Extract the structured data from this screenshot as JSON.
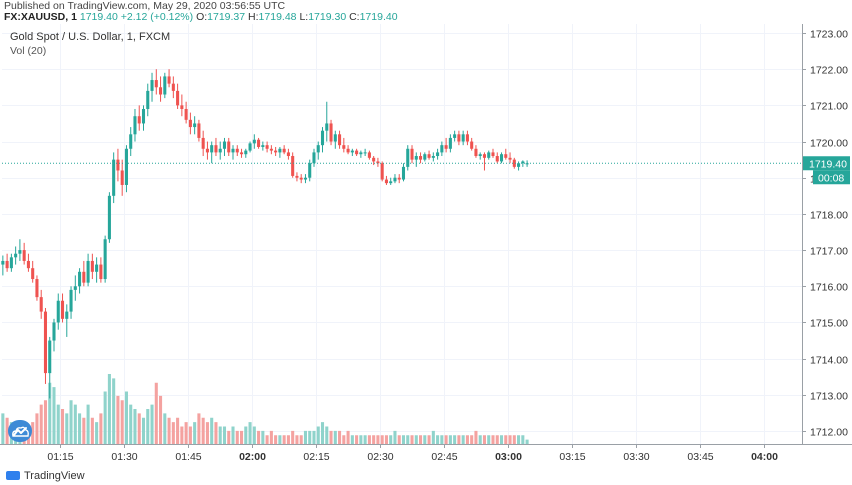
{
  "header": {
    "published": "Published on TradingView.com, May 29, 2020 03:56:55 UTC",
    "symbol": "FX:XAUUSD, 1",
    "last": "1719.40",
    "change": "+2.12 (+0.12%)",
    "o_label": "O:",
    "o": "1719.37",
    "h_label": "H:",
    "h": "1719.48",
    "l_label": "L:",
    "l": "1719.30",
    "c_label": "C:",
    "c": "1719.40"
  },
  "legend": {
    "title": "Gold Spot / U.S. Dollar, 1, FXCM",
    "volume": "Vol (20)"
  },
  "footer": {
    "brand": "TradingView"
  },
  "price_tag": {
    "price": "1719.40",
    "countdown": "00:08"
  },
  "colors": {
    "up": "#26a69a",
    "down": "#ef5350",
    "up_vol": "#8fd3cb",
    "down_vol": "#f4a2a0",
    "axis_text": "#333333"
  },
  "chart_data": {
    "type": "candlestick",
    "y_ticks": [
      1712,
      1713,
      1714,
      1715,
      1716,
      1717,
      1718,
      1719,
      1720,
      1721,
      1722,
      1723
    ],
    "y_tick_labels": [
      "1712.00",
      "1713.00",
      "1714.00",
      "1715.00",
      "1716.00",
      "1717.00",
      "1718.00",
      "1719.00",
      "1720.00",
      "1721.00",
      "1722.00",
      "1723.00"
    ],
    "x_ticks": [
      "01:15",
      "01:30",
      "01:45",
      "02:00",
      "02:15",
      "02:30",
      "02:45",
      "03:00",
      "03:15",
      "03:30",
      "03:45",
      "04:00"
    ],
    "x_tick_bold": [
      "02:00",
      "03:00",
      "04:00"
    ],
    "x_tick_minutes": [
      75,
      90,
      105,
      120,
      135,
      150,
      165,
      180,
      195,
      210,
      225,
      240
    ],
    "ylim": [
      1711.6,
      1723.2
    ],
    "xlim_minutes": [
      61.3,
      249
    ],
    "current_price": 1719.4,
    "candles_start_minute": 61.5,
    "candles": [
      [
        1716.6,
        1716.85,
        1716.3,
        1716.7
      ],
      [
        1716.7,
        1716.9,
        1716.4,
        1716.5
      ],
      [
        1716.5,
        1716.9,
        1716.4,
        1716.8
      ],
      [
        1716.8,
        1717.1,
        1716.6,
        1716.9
      ],
      [
        1716.9,
        1717.3,
        1716.7,
        1717.0
      ],
      [
        1717.0,
        1717.2,
        1716.6,
        1716.7
      ],
      [
        1716.7,
        1716.9,
        1716.4,
        1716.5
      ],
      [
        1716.5,
        1716.7,
        1716.1,
        1716.2
      ],
      [
        1716.2,
        1716.3,
        1715.6,
        1715.7
      ],
      [
        1715.7,
        1715.9,
        1715.1,
        1715.3
      ],
      [
        1715.3,
        1715.4,
        1713.3,
        1713.6
      ],
      [
        1713.6,
        1714.6,
        1712.9,
        1714.5
      ],
      [
        1714.5,
        1715.1,
        1714.2,
        1715.0
      ],
      [
        1715.0,
        1715.8,
        1714.8,
        1715.6
      ],
      [
        1715.6,
        1715.8,
        1715.0,
        1715.1
      ],
      [
        1715.1,
        1715.5,
        1714.6,
        1715.3
      ],
      [
        1715.3,
        1716.0,
        1715.1,
        1715.9
      ],
      [
        1715.9,
        1716.3,
        1715.6,
        1716.0
      ],
      [
        1716.0,
        1716.5,
        1715.8,
        1716.4
      ],
      [
        1716.4,
        1716.7,
        1716.0,
        1716.1
      ],
      [
        1716.1,
        1716.9,
        1716.0,
        1716.7
      ],
      [
        1716.7,
        1716.9,
        1716.2,
        1716.4
      ],
      [
        1716.4,
        1716.8,
        1716.1,
        1716.6
      ],
      [
        1716.6,
        1716.8,
        1716.1,
        1716.2
      ],
      [
        1716.2,
        1717.4,
        1716.1,
        1717.3
      ],
      [
        1717.3,
        1718.6,
        1717.2,
        1718.5
      ],
      [
        1718.5,
        1719.7,
        1718.3,
        1719.5
      ],
      [
        1719.5,
        1719.8,
        1718.9,
        1719.2
      ],
      [
        1719.2,
        1719.5,
        1718.5,
        1718.8
      ],
      [
        1718.8,
        1719.9,
        1718.6,
        1719.8
      ],
      [
        1719.8,
        1720.4,
        1719.6,
        1720.2
      ],
      [
        1720.2,
        1720.9,
        1720.0,
        1720.7
      ],
      [
        1720.7,
        1721.0,
        1720.3,
        1720.5
      ],
      [
        1720.5,
        1721.0,
        1720.3,
        1720.9
      ],
      [
        1720.9,
        1721.6,
        1720.7,
        1721.4
      ],
      [
        1721.4,
        1721.9,
        1721.1,
        1721.7
      ],
      [
        1721.7,
        1722.0,
        1721.3,
        1721.5
      ],
      [
        1721.5,
        1721.8,
        1721.1,
        1721.3
      ],
      [
        1721.3,
        1721.9,
        1721.2,
        1721.8
      ],
      [
        1721.8,
        1722.0,
        1721.5,
        1721.6
      ],
      [
        1721.6,
        1721.8,
        1721.2,
        1721.4
      ],
      [
        1721.4,
        1721.6,
        1720.9,
        1721.0
      ],
      [
        1721.0,
        1721.3,
        1720.7,
        1720.9
      ],
      [
        1720.9,
        1721.1,
        1720.5,
        1720.6
      ],
      [
        1720.6,
        1720.8,
        1720.2,
        1720.4
      ],
      [
        1720.4,
        1720.7,
        1720.2,
        1720.5
      ],
      [
        1720.5,
        1720.6,
        1720.0,
        1720.1
      ],
      [
        1720.1,
        1720.3,
        1719.6,
        1719.8
      ],
      [
        1719.8,
        1720.0,
        1719.5,
        1719.7
      ],
      [
        1719.7,
        1720.0,
        1719.4,
        1719.9
      ],
      [
        1719.9,
        1720.1,
        1719.6,
        1719.7
      ],
      [
        1719.7,
        1720.0,
        1719.5,
        1719.8
      ],
      [
        1719.8,
        1720.1,
        1719.6,
        1720.0
      ],
      [
        1720.0,
        1720.1,
        1719.6,
        1719.7
      ],
      [
        1719.7,
        1719.9,
        1719.5,
        1719.8
      ],
      [
        1719.8,
        1719.9,
        1719.6,
        1719.7
      ],
      [
        1719.7,
        1719.8,
        1719.55,
        1719.65
      ],
      [
        1719.65,
        1719.8,
        1719.55,
        1719.75
      ],
      [
        1719.75,
        1720.0,
        1719.7,
        1719.95
      ],
      [
        1719.95,
        1720.2,
        1719.8,
        1720.05
      ],
      [
        1720.05,
        1720.1,
        1719.8,
        1719.85
      ],
      [
        1719.85,
        1720.0,
        1719.75,
        1719.9
      ],
      [
        1719.9,
        1720.0,
        1719.7,
        1719.8
      ],
      [
        1719.8,
        1719.9,
        1719.65,
        1719.75
      ],
      [
        1719.75,
        1719.85,
        1719.6,
        1719.7
      ],
      [
        1719.7,
        1719.85,
        1719.55,
        1719.8
      ],
      [
        1719.8,
        1719.9,
        1719.65,
        1719.7
      ],
      [
        1719.7,
        1719.8,
        1719.5,
        1719.6
      ],
      [
        1719.6,
        1719.7,
        1719.0,
        1719.05
      ],
      [
        1719.05,
        1719.15,
        1718.9,
        1719.0
      ],
      [
        1719.0,
        1719.1,
        1718.85,
        1718.95
      ],
      [
        1718.95,
        1719.1,
        1718.85,
        1719.0
      ],
      [
        1719.0,
        1719.5,
        1718.9,
        1719.4
      ],
      [
        1719.4,
        1719.8,
        1719.3,
        1719.7
      ],
      [
        1719.7,
        1720.0,
        1719.5,
        1719.9
      ],
      [
        1719.9,
        1720.4,
        1719.7,
        1720.3
      ],
      [
        1720.3,
        1721.1,
        1720.0,
        1720.5
      ],
      [
        1720.5,
        1720.6,
        1719.9,
        1720.0
      ],
      [
        1720.0,
        1720.3,
        1719.8,
        1720.2
      ],
      [
        1720.2,
        1720.3,
        1719.8,
        1719.9
      ],
      [
        1719.9,
        1720.1,
        1719.7,
        1719.8
      ],
      [
        1719.8,
        1719.9,
        1719.65,
        1719.7
      ],
      [
        1719.7,
        1719.8,
        1719.6,
        1719.75
      ],
      [
        1719.75,
        1719.8,
        1719.6,
        1719.65
      ],
      [
        1719.65,
        1719.75,
        1719.55,
        1719.7
      ],
      [
        1719.7,
        1719.8,
        1719.6,
        1719.7
      ],
      [
        1719.7,
        1719.75,
        1719.5,
        1719.55
      ],
      [
        1719.55,
        1719.6,
        1719.35,
        1719.45
      ],
      [
        1719.45,
        1719.55,
        1719.3,
        1719.4
      ],
      [
        1719.4,
        1719.45,
        1718.9,
        1718.95
      ],
      [
        1718.95,
        1719.05,
        1718.8,
        1718.85
      ],
      [
        1718.85,
        1719.0,
        1718.8,
        1718.9
      ],
      [
        1718.9,
        1719.1,
        1718.85,
        1719.0
      ],
      [
        1719.0,
        1719.1,
        1718.85,
        1718.95
      ],
      [
        1718.95,
        1719.4,
        1718.9,
        1719.3
      ],
      [
        1719.3,
        1719.9,
        1719.2,
        1719.8
      ],
      [
        1719.8,
        1719.9,
        1719.4,
        1719.5
      ],
      [
        1719.5,
        1719.7,
        1719.3,
        1719.6
      ],
      [
        1719.6,
        1719.7,
        1719.4,
        1719.5
      ],
      [
        1719.5,
        1719.7,
        1719.45,
        1719.65
      ],
      [
        1719.65,
        1719.75,
        1719.5,
        1719.55
      ],
      [
        1719.55,
        1719.7,
        1719.45,
        1719.6
      ],
      [
        1719.6,
        1719.8,
        1719.5,
        1719.7
      ],
      [
        1719.7,
        1720.0,
        1719.6,
        1719.9
      ],
      [
        1719.9,
        1720.1,
        1719.7,
        1719.8
      ],
      [
        1719.8,
        1720.2,
        1719.7,
        1720.1
      ],
      [
        1720.1,
        1720.3,
        1720.0,
        1720.2
      ],
      [
        1720.2,
        1720.3,
        1719.9,
        1720.0
      ],
      [
        1720.0,
        1720.3,
        1719.9,
        1720.2
      ],
      [
        1720.2,
        1720.3,
        1719.9,
        1720.0
      ],
      [
        1720.0,
        1720.1,
        1719.75,
        1719.8
      ],
      [
        1719.8,
        1719.9,
        1719.55,
        1719.6
      ],
      [
        1719.6,
        1719.7,
        1719.5,
        1719.65
      ],
      [
        1719.65,
        1719.7,
        1719.2,
        1719.55
      ],
      [
        1719.55,
        1719.75,
        1719.5,
        1719.7
      ],
      [
        1719.7,
        1719.8,
        1719.55,
        1719.6
      ],
      [
        1719.6,
        1719.7,
        1719.4,
        1719.45
      ],
      [
        1719.45,
        1719.7,
        1719.4,
        1719.65
      ],
      [
        1719.65,
        1719.8,
        1719.5,
        1719.55
      ],
      [
        1719.55,
        1719.7,
        1719.4,
        1719.5
      ],
      [
        1719.5,
        1719.55,
        1719.25,
        1719.3
      ],
      [
        1719.3,
        1719.45,
        1719.2,
        1719.4
      ],
      [
        1719.4,
        1719.48,
        1719.3,
        1719.45
      ],
      [
        1719.37,
        1719.48,
        1719.3,
        1719.4
      ]
    ],
    "volumes": [
      7,
      6,
      5,
      4,
      3,
      5,
      4,
      5,
      7,
      9,
      10,
      14,
      13,
      9,
      8,
      7,
      10,
      9,
      7,
      6,
      9,
      6,
      5,
      7,
      12,
      16,
      15,
      11,
      10,
      12,
      9,
      8,
      7,
      6,
      8,
      9,
      14,
      11,
      7,
      6,
      5,
      6,
      4,
      5,
      4,
      5,
      7,
      6,
      5,
      6,
      5,
      4,
      4,
      3,
      4,
      3,
      3,
      4,
      5,
      4,
      3,
      3,
      2,
      3,
      2,
      2,
      2,
      2,
      3,
      2,
      2,
      3,
      3,
      3,
      4,
      5,
      4,
      3,
      3,
      3,
      2,
      3,
      2,
      2,
      2,
      2,
      2,
      2,
      2,
      2,
      2,
      2,
      3,
      2,
      2,
      2,
      2,
      2,
      2,
      2,
      2,
      3,
      2,
      2,
      2,
      2,
      2,
      2,
      2,
      2,
      2,
      3,
      2,
      2,
      2,
      2,
      2,
      2,
      2,
      2,
      2,
      2,
      2,
      1
    ]
  }
}
